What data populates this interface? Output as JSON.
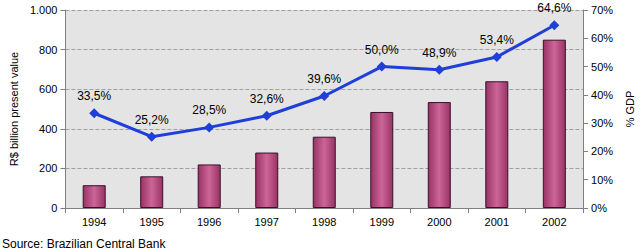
{
  "chart_data": {
    "type": "bar",
    "categories": [
      "1994",
      "1995",
      "1996",
      "1997",
      "1998",
      "1999",
      "2000",
      "2001",
      "2002"
    ],
    "ylabel": "R$ billion present value",
    "y2label": "% GDP",
    "annotation": "Source: Brazilian Central Bank",
    "ylim": [
      0,
      1000
    ],
    "yticks": [
      0,
      200,
      400,
      600,
      800,
      {
        "value": 1000,
        "label": "1.000"
      }
    ],
    "y2lim": [
      0,
      70
    ],
    "y2ticks": [
      {
        "value": 0,
        "label": "0%"
      },
      {
        "value": 10,
        "label": "10%"
      },
      {
        "value": 20,
        "label": "20%"
      },
      {
        "value": 30,
        "label": "30%"
      },
      {
        "value": 40,
        "label": "40%"
      },
      {
        "value": 50,
        "label": "50%"
      },
      {
        "value": 60,
        "label": "60%"
      },
      {
        "value": 70,
        "label": "70%"
      }
    ],
    "grid": true,
    "series": [
      {
        "type": "bar",
        "color": "#993366",
        "values": [
          115,
          160,
          220,
          280,
          360,
          485,
          535,
          640,
          850
        ]
      },
      {
        "type": "line",
        "axis": "y2",
        "color": "#1f3fd8",
        "marker": "diamond",
        "data_labels": true,
        "values": [
          33.5,
          25.2,
          28.5,
          32.6,
          39.6,
          50.0,
          48.9,
          53.4,
          64.6
        ],
        "value_labels": [
          "33,5%",
          "25,2%",
          "28,5%",
          "32,6%",
          "39,6%",
          "50,0%",
          "48,9%",
          "53,4%",
          "64,6%"
        ]
      }
    ]
  }
}
